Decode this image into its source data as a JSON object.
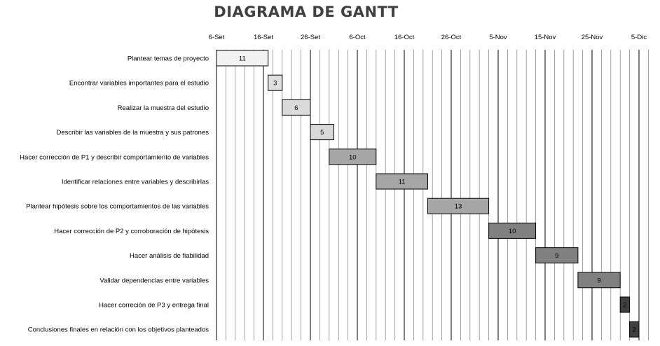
{
  "chart_data": {
    "type": "bar",
    "title": "DIAGRAMA DE GANTT",
    "x_tick_labels": [
      "6-Set",
      "16-Set",
      "26-Set",
      "6-Oct",
      "16-Oct",
      "26-Oct",
      "5-Nov",
      "15-Nov",
      "25-Nov",
      "5-Dic"
    ],
    "x_range_days": [
      0,
      90
    ],
    "grid": true,
    "categories": [
      "Plantear temas de proyecto",
      "Encontrar variables importantes para el estudio",
      "Realizar la muestra del estudio",
      "Describir las variables de la muestra y sus patrones",
      "Hacer corrección de P1 y describir comportamiento de variables",
      "Identificar  relaciones entre variables y describirlas",
      "Plantear hipótesis sobre los comportamientos de las variables",
      "Hacer corrección de P2 y corroboración de hipótesis",
      "Hacer análisis de fiabilidad",
      "Validar dependencias entre variables",
      "Hacer correción de P3 y entrega final",
      "Conclusiones finales en relación con los objetivos planteados"
    ],
    "start_dates": [
      "6-Set",
      "17-Set",
      "20-Set",
      "26-Set",
      "1-Oct",
      "11-Oct",
      "22-Oct",
      "4-Nov",
      "14-Nov",
      "23-Nov",
      "2-Dic",
      "4-Dic"
    ],
    "values": [
      11,
      3,
      6,
      5,
      10,
      11,
      13,
      10,
      9,
      9,
      2,
      2
    ],
    "colors": [
      "#f2f2f2",
      "#e0e0e0",
      "#dadada",
      "#d9d9d9",
      "#a6a6a6",
      "#a6a6a6",
      "#a6a6a6",
      "#808080",
      "#808080",
      "#808080",
      "#404040",
      "#404040"
    ]
  }
}
